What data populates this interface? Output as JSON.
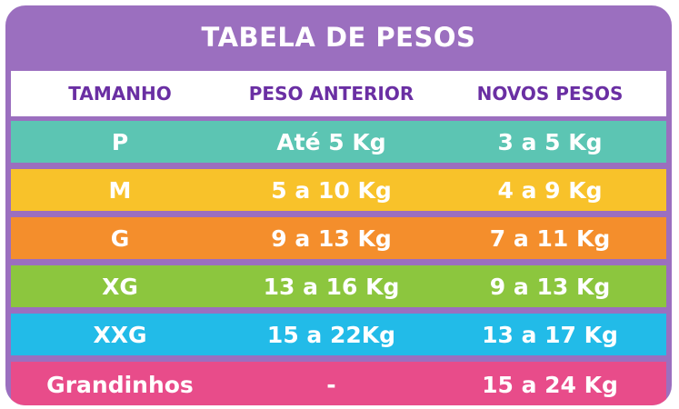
{
  "table": {
    "title": "TABELA DE PESOS",
    "headers": [
      "TAMANHO",
      "PESO ANTERIOR",
      "NOVOS PESOS"
    ],
    "header_color": "#6a2fa3",
    "frame_color": "#9b6fbf",
    "rows": [
      {
        "size": "P",
        "previous": "Até 5 Kg",
        "new": "3 a 5 Kg",
        "color": "#5cc5b3"
      },
      {
        "size": "M",
        "previous": "5 a 10 Kg",
        "new": "4 a 9 Kg",
        "color": "#f8c22a"
      },
      {
        "size": "G",
        "previous": "9 a 13 Kg",
        "new": "7 a 11 Kg",
        "color": "#f48e2c"
      },
      {
        "size": "XG",
        "previous": "13 a 16 Kg",
        "new": "9 a 13 Kg",
        "color": "#8cc63e"
      },
      {
        "size": "XXG",
        "previous": "15 a 22Kg",
        "new": "13 a 17 Kg",
        "color": "#22bbe8"
      },
      {
        "size": "Grandinhos",
        "previous": "-",
        "new": "15 a 24 Kg",
        "color": "#e84c8a"
      }
    ]
  }
}
